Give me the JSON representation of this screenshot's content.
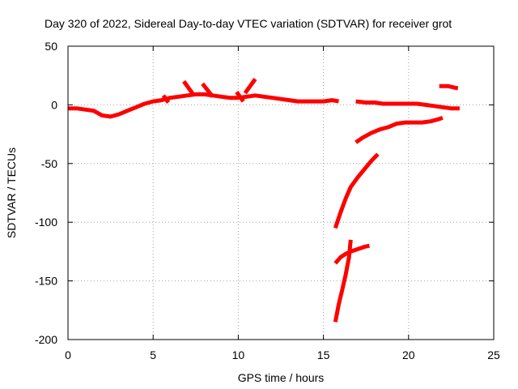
{
  "chart_data": {
    "type": "scatter",
    "title": "Day 320 of 2022, Sidereal Day-to-day VTEC variation (SDTVAR) for receiver grot",
    "xlabel": "GPS time / hours",
    "ylabel": "SDTVAR / TECUs",
    "xlim": [
      0,
      25
    ],
    "ylim": [
      -200,
      50
    ],
    "xticks": [
      0,
      5,
      10,
      15,
      20,
      25
    ],
    "yticks": [
      -200,
      -150,
      -100,
      -50,
      0,
      50
    ],
    "grid": true,
    "legend": false,
    "color": "#ff0000",
    "series": [
      {
        "points": [
          [
            0,
            -3
          ],
          [
            0.5,
            -3
          ],
          [
            1,
            -4
          ],
          [
            1.5,
            -5
          ],
          [
            2,
            -9
          ],
          [
            2.5,
            -10
          ],
          [
            3,
            -8
          ],
          [
            3.5,
            -5
          ],
          [
            4,
            -2
          ],
          [
            4.5,
            1
          ],
          [
            5,
            3
          ],
          [
            5.5,
            4
          ],
          [
            6,
            6
          ],
          [
            6.5,
            7
          ],
          [
            7,
            8
          ],
          [
            7.5,
            9
          ],
          [
            8,
            9
          ],
          [
            8.5,
            8
          ],
          [
            9,
            7
          ],
          [
            9.5,
            6
          ],
          [
            10,
            6
          ],
          [
            10.5,
            7
          ],
          [
            11,
            8
          ],
          [
            11.5,
            7
          ],
          [
            12,
            6
          ],
          [
            12.5,
            5
          ],
          [
            13,
            4
          ],
          [
            13.5,
            3
          ],
          [
            14,
            3
          ],
          [
            14.5,
            3
          ],
          [
            15,
            3
          ],
          [
            15.5,
            4
          ],
          [
            15.9,
            3
          ]
        ]
      },
      {
        "points": [
          [
            5.6,
            8
          ],
          [
            5.9,
            2
          ]
        ]
      },
      {
        "points": [
          [
            6.8,
            20
          ],
          [
            7.4,
            8
          ]
        ]
      },
      {
        "points": [
          [
            7.9,
            18
          ],
          [
            8.5,
            7
          ]
        ]
      },
      {
        "points": [
          [
            9.9,
            11
          ],
          [
            10.3,
            3
          ]
        ]
      },
      {
        "points": [
          [
            10.4,
            10
          ],
          [
            11.0,
            22
          ]
        ]
      },
      {
        "points": [
          [
            16.9,
            3
          ],
          [
            17.5,
            2
          ],
          [
            18,
            2
          ],
          [
            18.5,
            1
          ],
          [
            19,
            1
          ],
          [
            19.5,
            1
          ],
          [
            20,
            1
          ],
          [
            20.5,
            1
          ],
          [
            21,
            0
          ],
          [
            21.5,
            -1
          ],
          [
            22,
            -2
          ],
          [
            22.5,
            -3
          ],
          [
            23,
            -3
          ]
        ]
      },
      {
        "points": [
          [
            21.8,
            16
          ],
          [
            22.3,
            16
          ],
          [
            22.9,
            14
          ]
        ]
      },
      {
        "points": [
          [
            16.9,
            -32
          ],
          [
            17.3,
            -28
          ],
          [
            17.8,
            -24
          ],
          [
            18.3,
            -21
          ],
          [
            18.8,
            -19
          ],
          [
            19.3,
            -16
          ],
          [
            19.8,
            -15
          ],
          [
            20.3,
            -15
          ],
          [
            20.8,
            -15
          ],
          [
            21.3,
            -14
          ],
          [
            21.8,
            -12
          ],
          [
            22,
            -11
          ]
        ]
      },
      {
        "points": [
          [
            15.7,
            -105
          ],
          [
            16,
            -92
          ],
          [
            16.3,
            -80
          ],
          [
            16.6,
            -70
          ],
          [
            17,
            -62
          ],
          [
            17.4,
            -55
          ],
          [
            17.8,
            -48
          ],
          [
            18.2,
            -42
          ]
        ]
      },
      {
        "points": [
          [
            15.7,
            -135
          ],
          [
            16,
            -130
          ],
          [
            16.3,
            -127
          ],
          [
            16.6,
            -125
          ],
          [
            17,
            -123
          ],
          [
            17.4,
            -121
          ],
          [
            17.7,
            -120
          ]
        ]
      },
      {
        "points": [
          [
            15.7,
            -185
          ],
          [
            15.9,
            -170
          ],
          [
            16.1,
            -158
          ],
          [
            16.3,
            -145
          ],
          [
            16.5,
            -130
          ],
          [
            16.6,
            -115
          ]
        ]
      }
    ]
  }
}
